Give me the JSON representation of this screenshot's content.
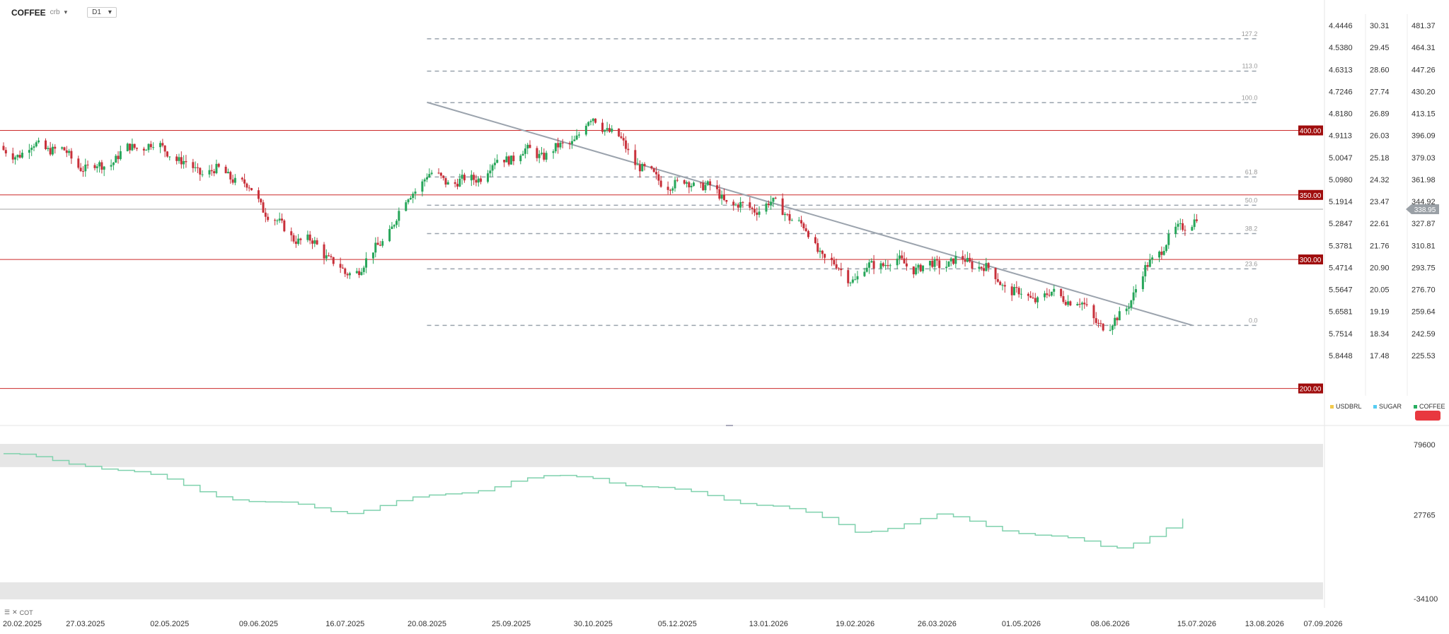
{
  "header": {
    "symbol": "COFFEE",
    "source": "crb",
    "symbol_chevron_icon": "chevron-down-icon",
    "timeframe": "D1",
    "timeframe_chevron_icon": "chevron-down-icon"
  },
  "cot_label": {
    "icon1": "menu-icon",
    "icon2": "close-icon",
    "text": "COT"
  },
  "legend": [
    {
      "label": "USDBRL",
      "color": "#f2c94c"
    },
    {
      "label": "SUGAR",
      "color": "#56ccf2"
    },
    {
      "label": "COFFEE",
      "color": "#27ae60"
    }
  ],
  "colors": {
    "up": "#27a65a",
    "down": "#c8303a",
    "hline": "#cc2a2a",
    "trend": "#9ba3ad",
    "fib": "#9aa3ad",
    "cot_line": "#7fd1ad",
    "cot_band": "#e6e6e6",
    "price_tag": "#9aa0a6"
  },
  "chart_data": {
    "type": "candlestick",
    "x_labels": [
      "20.02.2025",
      "27.03.2025",
      "02.05.2025",
      "09.06.2025",
      "16.07.2025",
      "20.08.2025",
      "25.09.2025",
      "30.10.2025",
      "05.12.2025",
      "13.01.2026",
      "19.02.2026",
      "26.03.2026",
      "01.05.2026",
      "08.06.2026",
      "15.07.2026",
      "13.08.2026",
      "07.09.2026"
    ],
    "y_axis_coffee": [
      "481.37",
      "464.31",
      "447.26",
      "430.20",
      "413.15",
      "396.09",
      "379.03",
      "361.98",
      "344.92",
      "327.87",
      "310.81",
      "293.75",
      "276.70",
      "259.64",
      "242.59",
      "225.53"
    ],
    "y_axis_sugar": [
      "30.31",
      "29.45",
      "28.60",
      "27.74",
      "26.89",
      "26.03",
      "25.18",
      "24.32",
      "23.47",
      "22.61",
      "21.76",
      "20.90",
      "20.05",
      "19.19",
      "18.34",
      "17.48"
    ],
    "y_axis_usdbrl": [
      "4.4446",
      "4.5380",
      "4.6313",
      "4.7246",
      "4.8180",
      "4.9113",
      "5.0047",
      "5.0980",
      "5.1914",
      "5.2847",
      "5.3781",
      "5.4714",
      "5.5647",
      "5.6581",
      "5.7514",
      "5.8448"
    ],
    "ylim": [
      218,
      489
    ],
    "last_price": "338.95",
    "horizontal_levels": [
      {
        "label": "400.00",
        "value": 400
      },
      {
        "label": "350.00",
        "value": 350
      },
      {
        "label": "300.00",
        "value": 300
      },
      {
        "label": "200.00",
        "value": 200
      }
    ],
    "fib_levels": [
      {
        "label": "127.2",
        "value": 471.0
      },
      {
        "label": "113.0",
        "value": 446.0
      },
      {
        "label": "100.0",
        "value": 421.5
      },
      {
        "label": "61.8",
        "value": 363.9
      },
      {
        "label": "50.0",
        "value": 342.0
      },
      {
        "label": "38.2",
        "value": 320.0
      },
      {
        "label": "23.6",
        "value": 292.7
      },
      {
        "label": "0.0",
        "value": 248.9
      }
    ],
    "fib_start_date": "20.08.2025",
    "fib_end_date": "13.08.2026",
    "trendline": {
      "from_date": "20.08.2025",
      "from_value": 421.8,
      "to_date": "15.07.2026",
      "to_value": 248.9
    },
    "ohlc": [
      [
        "20.02.2025",
        388
      ],
      [
        "27.03.2025",
        376
      ],
      [
        "02.05.2025",
        386
      ],
      [
        "09.06.2025",
        347
      ],
      [
        "16.07.2025",
        285
      ],
      [
        "20.08.2025",
        360
      ],
      [
        "25.09.2025",
        374
      ],
      [
        "30.10.2025",
        404
      ],
      [
        "05.12.2025",
        356
      ],
      [
        "13.01.2026",
        342
      ],
      [
        "19.02.2026",
        287
      ],
      [
        "26.03.2026",
        302
      ],
      [
        "01.05.2026",
        278
      ],
      [
        "08.06.2026",
        252
      ],
      [
        "15.07.2026",
        338.95
      ]
    ],
    "cot_y_axis": [
      "79600",
      "27765",
      "-34100"
    ],
    "cot_ylim": [
      -34100,
      79600
    ],
    "cot_series": [
      [
        "20.02.2025",
        71000
      ],
      [
        "27.03.2025",
        66000
      ],
      [
        "02.05.2025",
        52000
      ],
      [
        "09.06.2025",
        36000
      ],
      [
        "16.07.2025",
        31000
      ],
      [
        "20.08.2025",
        40000
      ],
      [
        "25.09.2025",
        53000
      ],
      [
        "30.10.2025",
        56000
      ],
      [
        "05.12.2025",
        44000
      ],
      [
        "13.01.2026",
        36000
      ],
      [
        "19.02.2026",
        16000
      ],
      [
        "26.03.2026",
        26000
      ],
      [
        "01.05.2026",
        16000
      ],
      [
        "08.06.2026",
        2000
      ],
      [
        "15.07.2026",
        28500
      ]
    ],
    "cot_band_upper": 63000,
    "cot_band_lower": -22000
  }
}
